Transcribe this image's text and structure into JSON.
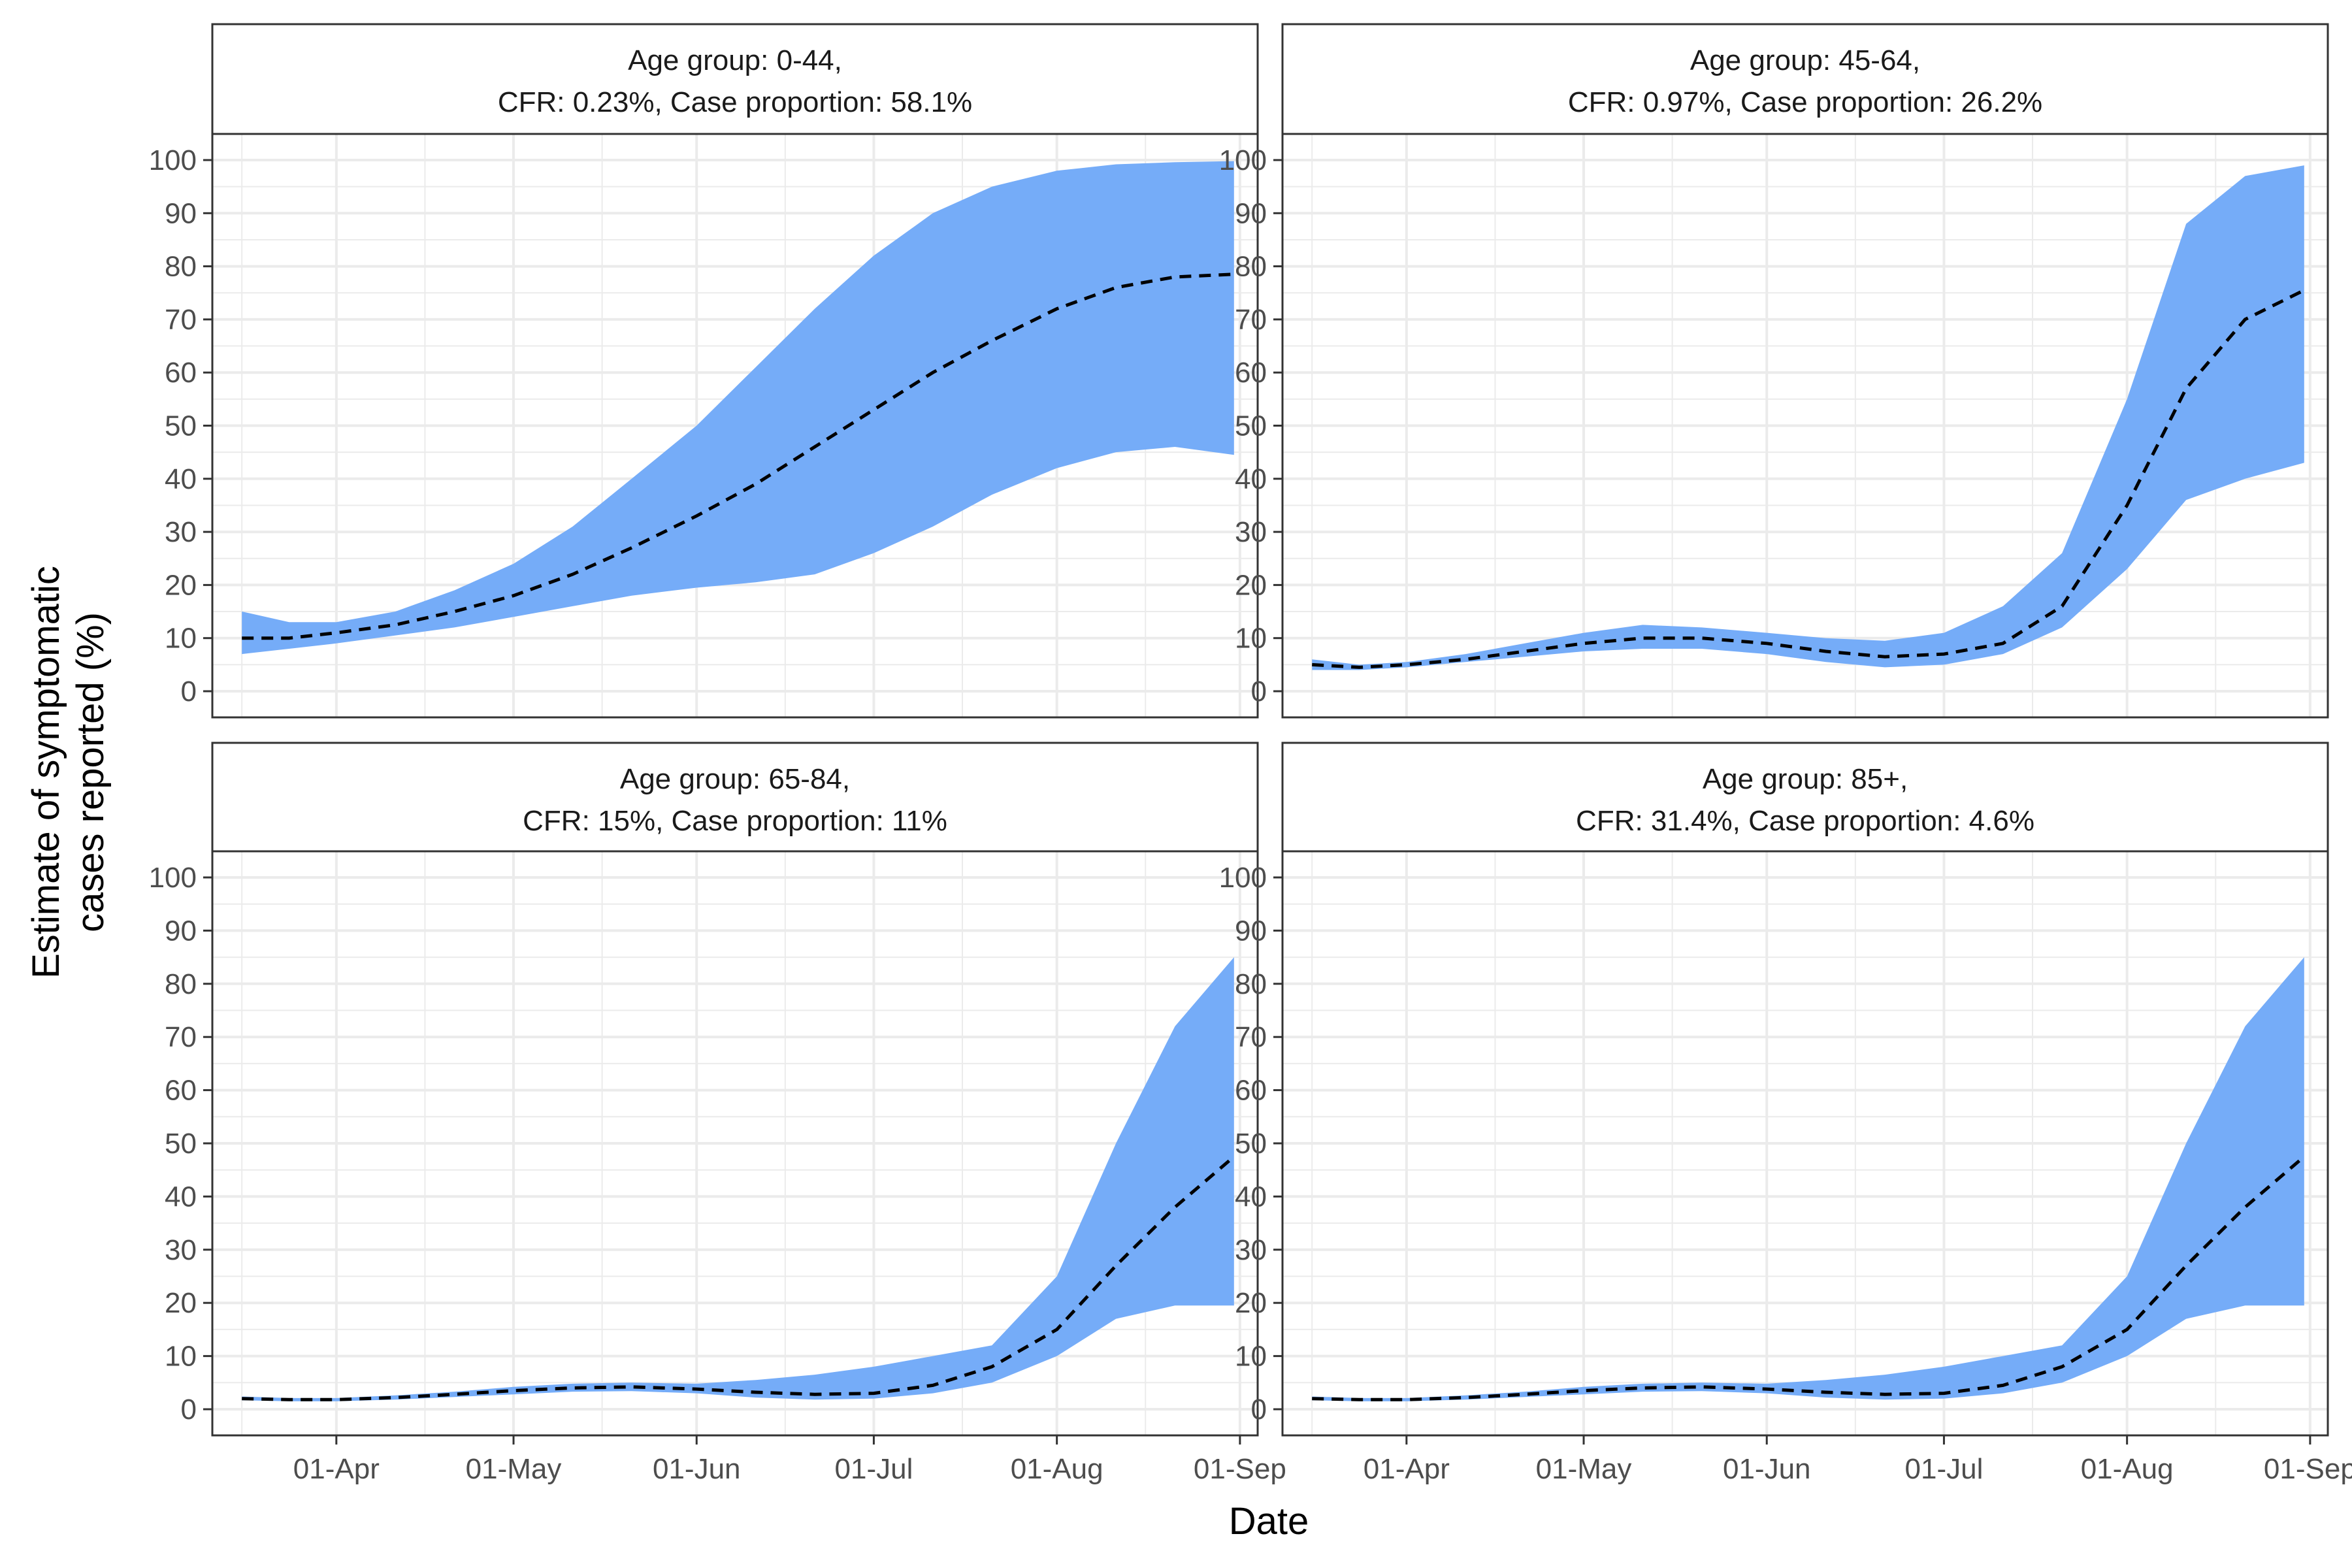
{
  "chart_data": {
    "type": "area",
    "xlabel": "Date",
    "ylabel_line1": "Estimate of symptomatic",
    "ylabel_line2": "cases reported (%)",
    "ylim": [
      0,
      100
    ],
    "yticks": [
      0,
      10,
      20,
      30,
      40,
      50,
      60,
      70,
      80,
      90,
      100
    ],
    "xlim": [
      "2020-03-11",
      "2020-09-04"
    ],
    "xticks": [
      {
        "date": "2020-04-01",
        "label": "01-Apr"
      },
      {
        "date": "2020-05-01",
        "label": "01-May"
      },
      {
        "date": "2020-06-01",
        "label": "01-Jun"
      },
      {
        "date": "2020-07-01",
        "label": "01-Jul"
      },
      {
        "date": "2020-08-01",
        "label": "01-Aug"
      },
      {
        "date": "2020-09-01",
        "label": "01-Sep"
      }
    ],
    "colors": {
      "ribbon": "#75acf8",
      "line": "#000000",
      "grid": "#ebebeb",
      "panel_border": "#333333",
      "strip": "#ffffff"
    },
    "panels": [
      {
        "title_line1": "Age group: 0-44,",
        "title_line2": "CFR: 0.23%, Case proportion: 58.1%",
        "dates": [
          "2020-03-16",
          "2020-03-24",
          "2020-04-01",
          "2020-04-11",
          "2020-04-21",
          "2020-05-01",
          "2020-05-11",
          "2020-05-21",
          "2020-06-01",
          "2020-06-11",
          "2020-06-21",
          "2020-07-01",
          "2020-07-11",
          "2020-07-21",
          "2020-08-01",
          "2020-08-11",
          "2020-08-21",
          "2020-08-31"
        ],
        "mean": [
          10,
          10,
          11,
          12.5,
          15,
          18,
          22,
          27,
          33,
          39,
          46,
          53,
          60,
          66,
          72,
          76,
          78,
          78.5
        ],
        "lower": [
          7,
          8,
          9,
          10.5,
          12,
          14,
          16,
          18,
          19.5,
          20.5,
          22,
          26,
          31,
          37,
          42,
          45,
          46,
          44.5
        ],
        "upper": [
          15,
          13,
          13,
          15,
          19,
          24,
          31,
          40,
          50,
          61,
          72,
          82,
          90,
          95,
          98,
          99.2,
          99.6,
          99.8
        ]
      },
      {
        "title_line1": "Age group: 45-64,",
        "title_line2": "CFR: 0.97%, Case proportion: 26.2%",
        "dates": [
          "2020-03-16",
          "2020-03-24",
          "2020-04-01",
          "2020-04-11",
          "2020-04-21",
          "2020-05-01",
          "2020-05-11",
          "2020-05-21",
          "2020-06-01",
          "2020-06-11",
          "2020-06-21",
          "2020-07-01",
          "2020-07-11",
          "2020-07-21",
          "2020-08-01",
          "2020-08-11",
          "2020-08-21",
          "2020-08-31"
        ],
        "mean": [
          5,
          4.5,
          5,
          6,
          7.5,
          9,
          10,
          10,
          9,
          7.5,
          6.5,
          7,
          9,
          16,
          35,
          57,
          70,
          75.5
        ],
        "lower": [
          4,
          4,
          4.5,
          5.5,
          6.5,
          7.5,
          8,
          8,
          7,
          5.5,
          4.5,
          5,
          7,
          12,
          23,
          36,
          40,
          43
        ],
        "upper": [
          6,
          5,
          5.5,
          7,
          9,
          11,
          12.5,
          12,
          11,
          10,
          9.5,
          11,
          16,
          26,
          55,
          88,
          97,
          99
        ]
      },
      {
        "title_line1": "Age group: 65-84,",
        "title_line2": "CFR: 15%, Case proportion: 11%",
        "dates": [
          "2020-03-16",
          "2020-03-24",
          "2020-04-01",
          "2020-04-11",
          "2020-04-21",
          "2020-05-01",
          "2020-05-11",
          "2020-05-21",
          "2020-06-01",
          "2020-06-11",
          "2020-06-21",
          "2020-07-01",
          "2020-07-11",
          "2020-07-21",
          "2020-08-01",
          "2020-08-11",
          "2020-08-21",
          "2020-08-31"
        ],
        "mean": [
          2,
          1.8,
          1.8,
          2.2,
          2.8,
          3.5,
          4,
          4.2,
          3.8,
          3.2,
          2.8,
          3,
          4.5,
          8,
          15,
          27,
          38,
          47.5
        ],
        "lower": [
          1.7,
          1.5,
          1.5,
          1.8,
          2.3,
          2.8,
          3.3,
          3.4,
          3,
          2.2,
          1.8,
          2,
          3,
          5,
          10,
          17,
          19.5,
          19.5
        ],
        "upper": [
          2.4,
          2.1,
          2.1,
          2.6,
          3.3,
          4.2,
          4.8,
          5,
          4.8,
          5.5,
          6.5,
          8,
          10,
          12,
          25,
          50,
          72,
          85
        ]
      },
      {
        "title_line1": "Age group: 85+,",
        "title_line2": "CFR: 31.4%, Case proportion: 4.6%",
        "dates": [
          "2020-03-16",
          "2020-03-24",
          "2020-04-01",
          "2020-04-11",
          "2020-04-21",
          "2020-05-01",
          "2020-05-11",
          "2020-05-21",
          "2020-06-01",
          "2020-06-11",
          "2020-06-21",
          "2020-07-01",
          "2020-07-11",
          "2020-07-21",
          "2020-08-01",
          "2020-08-11",
          "2020-08-21",
          "2020-08-31"
        ],
        "mean": [
          2,
          1.8,
          1.8,
          2.2,
          2.8,
          3.5,
          4,
          4.2,
          3.8,
          3.2,
          2.8,
          3,
          4.5,
          8,
          15,
          27,
          38,
          47.5
        ],
        "lower": [
          1.7,
          1.5,
          1.5,
          1.8,
          2.3,
          2.8,
          3.3,
          3.4,
          3,
          2.2,
          1.8,
          2,
          3,
          5,
          10,
          17,
          19.5,
          19.5
        ],
        "upper": [
          2.4,
          2.1,
          2.1,
          2.6,
          3.3,
          4.2,
          4.8,
          5,
          4.8,
          5.5,
          6.5,
          8,
          10,
          12,
          25,
          50,
          72,
          85
        ]
      }
    ]
  }
}
